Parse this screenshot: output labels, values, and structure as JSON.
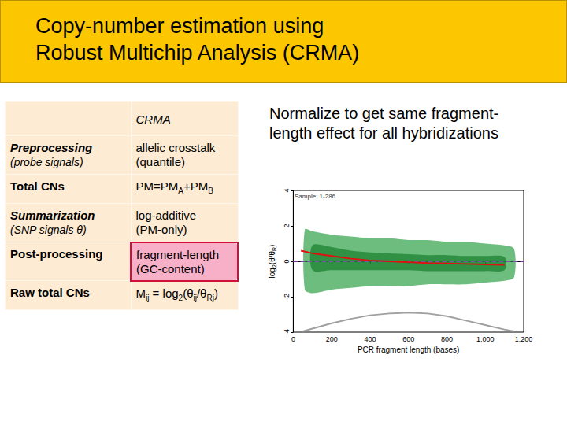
{
  "header": {
    "title": [
      "Copy-number estimation using",
      "Robust Multichip Analysis (CRMA)"
    ]
  },
  "table": {
    "header": "CRMA",
    "rows": [
      {
        "label": [
          [
            "Preprocessing"
          ],
          [
            "(probe signals)"
          ]
        ],
        "italic": true,
        "value": [
          [
            "allelic crosstalk"
          ],
          [
            "(quantile)"
          ]
        ]
      },
      {
        "label": [
          [
            "Total CNs"
          ]
        ],
        "value": [
          [
            "PM=PM",
            {
              "sub": "A"
            },
            "+PM",
            {
              "sub": "B"
            }
          ]
        ]
      },
      {
        "label": [
          [
            "Summarization"
          ],
          [
            "(SNP signals θ)"
          ]
        ],
        "italic": true,
        "separator_before": true,
        "value": [
          [
            "log-additive"
          ],
          [
            "(PM-only)"
          ]
        ]
      },
      {
        "label": [
          [
            "Post-processing"
          ]
        ],
        "highlight": true,
        "value": [
          [
            "fragment-length"
          ],
          [
            "(GC-content)"
          ]
        ]
      },
      {
        "label": [
          [
            "Raw total CNs"
          ]
        ],
        "value": [
          [
            "M",
            {
              "sub": "ij"
            },
            " = log",
            {
              "sub": "2"
            },
            "(θ",
            {
              "sub": "ij"
            },
            "/θ",
            {
              "sub": "Rj"
            },
            ")"
          ]
        ]
      }
    ]
  },
  "note": "Normalize to get same fragment-length effect for all hybridizations",
  "chart_data": {
    "type": "line",
    "annotations": [
      "Sample: 1-286"
    ],
    "xlabel": "PCR fragment length (bases)",
    "ylabel": [
      "log",
      {
        "sub": "2"
      },
      "(θ/θ",
      {
        "sub": "R"
      },
      ")"
    ],
    "xlim": [
      0,
      1200
    ],
    "xticks": [
      0,
      200,
      400,
      600,
      800,
      1000,
      1200
    ],
    "ylim": [
      -4,
      4
    ],
    "yticks": [
      -4,
      -2,
      0,
      2,
      4
    ],
    "grid": false,
    "series": [
      {
        "type": "band",
        "color": "#1f9a3a",
        "x": [
          60,
          100,
          200,
          300,
          400,
          500,
          600,
          700,
          800,
          900,
          1000,
          1100,
          1150
        ],
        "lower": [
          -1.6,
          -1.8,
          -1.6,
          -1.5,
          -1.4,
          -1.4,
          -1.4,
          -1.3,
          -1.3,
          -1.3,
          -1.2,
          -1.1,
          -0.9
        ],
        "upper": [
          1.8,
          1.7,
          1.5,
          1.4,
          1.3,
          1.3,
          1.2,
          1.2,
          1.1,
          1.1,
          1.0,
          0.9,
          0.7
        ]
      },
      {
        "type": "band",
        "color": "#0f7a25",
        "x": [
          100,
          200,
          300,
          400,
          500,
          600,
          700,
          800,
          900,
          1000,
          1100
        ],
        "lower": [
          -0.5,
          -0.5,
          -0.5,
          -0.5,
          -0.5,
          -0.5,
          -0.55,
          -0.55,
          -0.55,
          -0.55,
          -0.5
        ],
        "upper": [
          0.9,
          0.8,
          0.6,
          0.5,
          0.45,
          0.4,
          0.35,
          0.35,
          0.3,
          0.3,
          0.25
        ]
      },
      {
        "type": "line",
        "color": "#9a4fd0",
        "line_style": "dashed",
        "marker": "none",
        "x": [
          0,
          1200
        ],
        "values": [
          0,
          0
        ]
      },
      {
        "type": "line",
        "color": "#e01010",
        "line_style": "solid",
        "marker": "none",
        "x": [
          40,
          100,
          200,
          300,
          400,
          500,
          600,
          700,
          800,
          900,
          1000,
          1100
        ],
        "values": [
          0.6,
          0.45,
          0.3,
          0.15,
          0.05,
          0,
          -0.05,
          -0.1,
          -0.12,
          -0.15,
          -0.18,
          -0.2
        ]
      },
      {
        "type": "line",
        "color": "#a0a0a0",
        "line_style": "solid",
        "marker": "none",
        "x": [
          50,
          100,
          200,
          300,
          400,
          500,
          600,
          700,
          800,
          900,
          1000,
          1100,
          1150
        ],
        "values": [
          -3.95,
          -3.8,
          -3.5,
          -3.25,
          -3.05,
          -2.95,
          -2.9,
          -2.95,
          -3.1,
          -3.35,
          -3.6,
          -3.85,
          -3.95
        ]
      }
    ]
  }
}
